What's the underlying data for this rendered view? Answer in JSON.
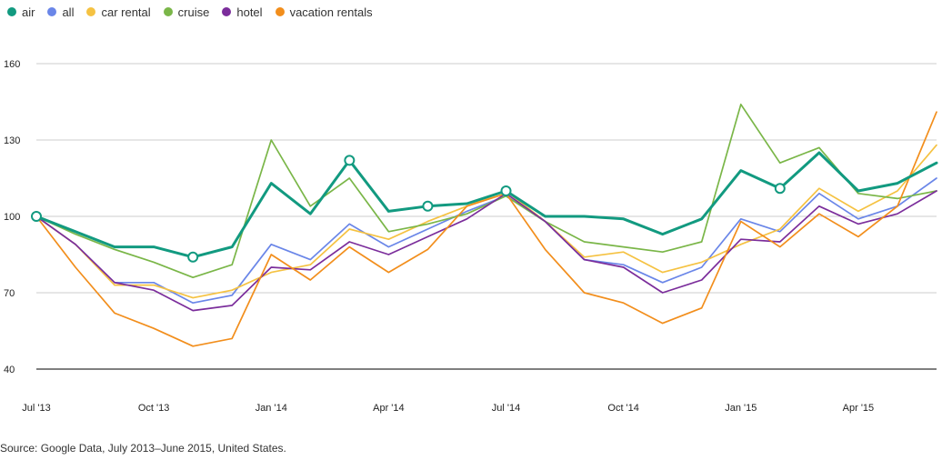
{
  "chart_data": {
    "type": "line",
    "title": "",
    "xlabel": "",
    "ylabel": "",
    "x": [
      "Jul '13",
      "Aug '13",
      "Sep '13",
      "Oct '13",
      "Nov '13",
      "Dec '13",
      "Jan '14",
      "Feb '14",
      "Mar '14",
      "Apr '14",
      "May '14",
      "Jun '14",
      "Jul '14",
      "Aug '14",
      "Sep '14",
      "Oct '14",
      "Nov '14",
      "Dec '14",
      "Jan '15",
      "Feb '15",
      "Mar '15",
      "Apr '15",
      "May '15",
      "Jun '15"
    ],
    "xticks": [
      "Jul '13",
      "Oct '13",
      "Jan '14",
      "Apr '14",
      "Jul '14",
      "Oct '14",
      "Jan '15",
      "Apr '15"
    ],
    "yticks": [
      40,
      70,
      100,
      130,
      160
    ],
    "ylim": [
      40,
      160
    ],
    "grid": true,
    "legend_position": "top-left",
    "series": [
      {
        "name": "air",
        "color": "#129A80",
        "emphasis": true,
        "values": [
          100,
          94,
          88,
          88,
          84,
          88,
          113,
          101,
          122,
          102,
          104,
          105,
          110,
          100,
          100,
          99,
          93,
          99,
          118,
          111,
          125,
          110,
          113,
          121
        ],
        "markers": [
          0,
          4,
          8,
          10,
          12,
          19
        ]
      },
      {
        "name": "all",
        "color": "#6A86E8",
        "values": [
          100,
          89,
          74,
          74,
          66,
          69,
          89,
          83,
          97,
          88,
          95,
          102,
          108,
          98,
          83,
          81,
          74,
          80,
          99,
          94,
          109,
          99,
          104,
          115
        ]
      },
      {
        "name": "car rental",
        "color": "#F5C242",
        "values": [
          100,
          89,
          73,
          73,
          68,
          71,
          78,
          81,
          95,
          91,
          98,
          104,
          110,
          98,
          84,
          86,
          78,
          82,
          89,
          95,
          111,
          102,
          110,
          128
        ]
      },
      {
        "name": "cruise",
        "color": "#7AB648",
        "values": [
          100,
          93,
          87,
          82,
          76,
          81,
          130,
          104,
          115,
          94,
          97,
          101,
          108,
          98,
          90,
          88,
          86,
          90,
          144,
          121,
          127,
          109,
          107,
          110
        ]
      },
      {
        "name": "hotel",
        "color": "#7B2D9B",
        "values": [
          100,
          89,
          74,
          71,
          63,
          65,
          80,
          79,
          90,
          85,
          92,
          99,
          109,
          98,
          83,
          80,
          70,
          75,
          91,
          90,
          104,
          97,
          101,
          110
        ]
      },
      {
        "name": "vacation rentals",
        "color": "#F28E1C",
        "values": [
          100,
          80,
          62,
          56,
          49,
          52,
          85,
          75,
          88,
          78,
          87,
          104,
          109,
          87,
          70,
          66,
          58,
          64,
          98,
          88,
          101,
          92,
          104,
          141
        ]
      }
    ]
  },
  "footer": {
    "source": "Source: Google Data, July 2013–June 2015, United States."
  }
}
